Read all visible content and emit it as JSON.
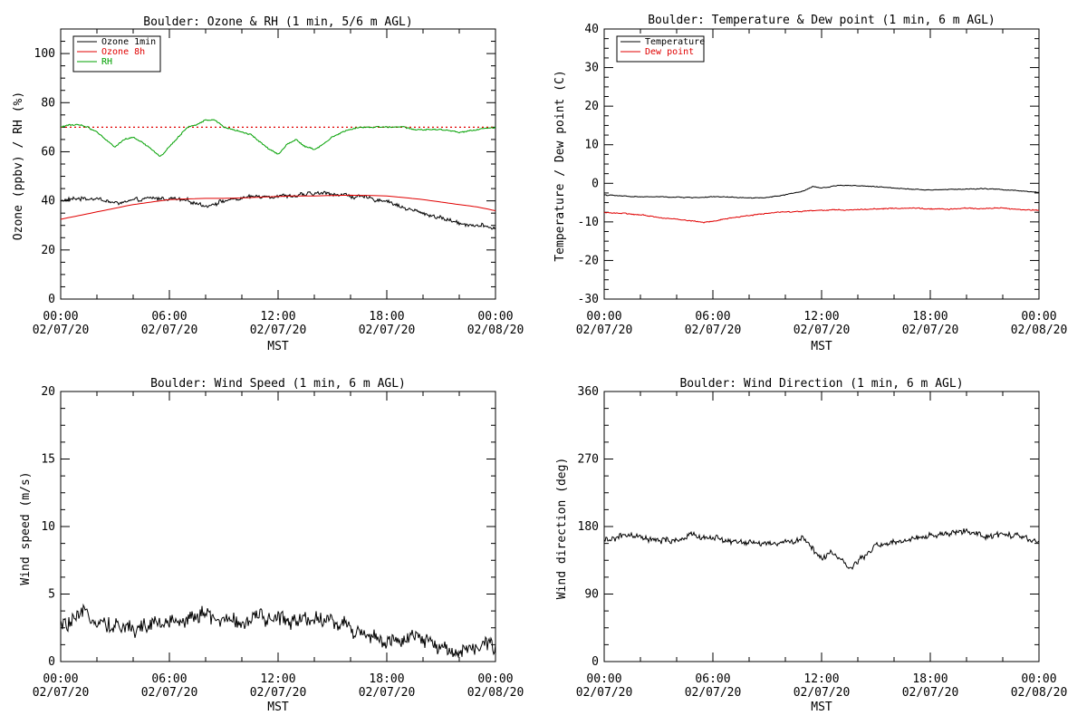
{
  "colors": {
    "black": "#000000",
    "red": "#e00000",
    "green": "#00a000"
  },
  "chart_data": [
    {
      "id": "ozone",
      "type": "line",
      "title": "Boulder: Ozone & RH (1 min, 5/6 m AGL)",
      "ylabel": "Ozone (ppbv) / RH (%)",
      "xlabel": "MST",
      "xlim": [
        0,
        24
      ],
      "ylim": [
        0,
        110
      ],
      "x_ticks": [
        {
          "hour": 0,
          "time": "00:00",
          "date": "02/07/20"
        },
        {
          "hour": 6,
          "time": "06:00",
          "date": "02/07/20"
        },
        {
          "hour": 12,
          "time": "12:00",
          "date": "02/07/20"
        },
        {
          "hour": 18,
          "time": "18:00",
          "date": "02/07/20"
        },
        {
          "hour": 24,
          "time": "00:00",
          "date": "02/08/20"
        }
      ],
      "y_ticks": [
        0,
        20,
        40,
        60,
        80,
        100
      ],
      "legend": "top-left",
      "reference_line": {
        "y": 70,
        "color": "#e00000",
        "style": "dotted"
      },
      "series": [
        {
          "name": "Ozone 1min",
          "color": "#000000",
          "noise": 1.2,
          "x": [
            0,
            1,
            2,
            3,
            4,
            5,
            6,
            7,
            8,
            9,
            10,
            11,
            12,
            13,
            14,
            15,
            16,
            17,
            18,
            19,
            20,
            21,
            22,
            23,
            24
          ],
          "y": [
            40,
            41,
            41,
            39,
            40,
            41,
            41,
            40,
            38,
            40,
            41,
            42,
            42,
            42,
            43,
            43,
            42,
            41,
            40,
            37,
            35,
            33,
            31,
            30,
            29
          ]
        },
        {
          "name": "Ozone 8h",
          "color": "#e00000",
          "noise": 0,
          "x": [
            0,
            1,
            2,
            3,
            4,
            5,
            6,
            7,
            8,
            9,
            10,
            11,
            12,
            13,
            14,
            15,
            16,
            17,
            18,
            19,
            20,
            21,
            22,
            23,
            24
          ],
          "y": [
            32.5,
            34,
            35.5,
            37,
            38.5,
            39.5,
            40.5,
            40.8,
            41,
            41,
            41.2,
            41.5,
            41.8,
            42,
            42,
            42.2,
            42.3,
            42.2,
            42,
            41.3,
            40.5,
            39.5,
            38.5,
            37.5,
            36
          ]
        },
        {
          "name": "RH",
          "color": "#00a000",
          "noise": 0.4,
          "x": [
            0,
            0.5,
            1,
            1.5,
            2,
            2.5,
            3,
            3.5,
            4,
            4.5,
            5,
            5.5,
            6,
            6.5,
            7,
            7.5,
            8,
            8.5,
            9,
            9.5,
            10,
            10.5,
            11,
            11.5,
            12,
            12.5,
            13,
            13.5,
            14,
            14.5,
            15,
            15.5,
            16,
            16.5,
            17,
            17.5,
            18,
            18.5,
            19,
            19.5,
            20,
            21,
            22,
            23,
            24
          ],
          "y": [
            70,
            71,
            71,
            70,
            68,
            65,
            62,
            65,
            66,
            64,
            61,
            58,
            62,
            66,
            70,
            71,
            73,
            73,
            70,
            69,
            68,
            67,
            64,
            61,
            59,
            63,
            65,
            62,
            61,
            63,
            66,
            68,
            69,
            70,
            70,
            70,
            70,
            70,
            70,
            69,
            69,
            69,
            68,
            69,
            70
          ]
        }
      ]
    },
    {
      "id": "temp",
      "type": "line",
      "title": "Boulder: Temperature & Dew point (1 min, 6 m AGL)",
      "ylabel": "Temperature / Dew point (C)",
      "xlabel": "MST",
      "xlim": [
        0,
        24
      ],
      "ylim": [
        -30,
        40
      ],
      "x_ticks": [
        {
          "hour": 0,
          "time": "00:00",
          "date": "02/07/20"
        },
        {
          "hour": 6,
          "time": "06:00",
          "date": "02/07/20"
        },
        {
          "hour": 12,
          "time": "12:00",
          "date": "02/07/20"
        },
        {
          "hour": 18,
          "time": "18:00",
          "date": "02/07/20"
        },
        {
          "hour": 24,
          "time": "00:00",
          "date": "02/08/20"
        }
      ],
      "y_ticks": [
        -30,
        -20,
        -10,
        0,
        10,
        20,
        30,
        40
      ],
      "legend": "top-left",
      "series": [
        {
          "name": "Temperature",
          "color": "#000000",
          "noise": 0.15,
          "x": [
            0,
            1,
            2,
            3,
            4,
            5,
            6,
            7,
            8,
            9,
            10,
            11,
            11.5,
            12,
            13,
            14,
            15,
            16,
            17,
            18,
            19,
            20,
            21,
            22,
            23,
            24
          ],
          "y": [
            -3,
            -3.3,
            -3.5,
            -3.5,
            -3.6,
            -3.7,
            -3.5,
            -3.6,
            -3.8,
            -3.7,
            -3,
            -2,
            -0.8,
            -1.2,
            -0.5,
            -0.6,
            -0.9,
            -1.2,
            -1.5,
            -1.7,
            -1.6,
            -1.5,
            -1.4,
            -1.6,
            -2,
            -2.4
          ]
        },
        {
          "name": "Dew point",
          "color": "#e00000",
          "noise": 0.2,
          "x": [
            0,
            1,
            2,
            3,
            4,
            5,
            5.5,
            6,
            7,
            8,
            9,
            10,
            11,
            12,
            13,
            14,
            15,
            16,
            17,
            18,
            19,
            20,
            21,
            22,
            23,
            24
          ],
          "y": [
            -7.5,
            -7.8,
            -8.2,
            -8.8,
            -9.3,
            -9.8,
            -10.2,
            -9.8,
            -9,
            -8.3,
            -7.8,
            -7.4,
            -7.2,
            -7,
            -6.9,
            -6.8,
            -6.6,
            -6.5,
            -6.5,
            -6.6,
            -6.7,
            -6.5,
            -6.5,
            -6.4,
            -6.8,
            -7
          ]
        }
      ]
    },
    {
      "id": "wspd",
      "type": "line",
      "title": "Boulder: Wind Speed (1 min, 6 m AGL)",
      "ylabel": "Wind speed (m/s)",
      "xlabel": "MST",
      "xlim": [
        0,
        24
      ],
      "ylim": [
        0,
        20
      ],
      "x_ticks": [
        {
          "hour": 0,
          "time": "00:00",
          "date": "02/07/20"
        },
        {
          "hour": 6,
          "time": "06:00",
          "date": "02/07/20"
        },
        {
          "hour": 12,
          "time": "12:00",
          "date": "02/07/20"
        },
        {
          "hour": 18,
          "time": "18:00",
          "date": "02/07/20"
        },
        {
          "hour": 24,
          "time": "00:00",
          "date": "02/08/20"
        }
      ],
      "y_ticks": [
        0,
        5,
        10,
        15,
        20
      ],
      "series": [
        {
          "name": "",
          "color": "#000000",
          "noise": 0.9,
          "x": [
            0,
            1,
            1.5,
            2,
            3,
            4,
            5,
            6,
            7,
            7.5,
            8,
            9,
            10,
            11,
            12,
            13,
            14,
            15,
            16,
            17,
            18,
            19,
            19.5,
            20,
            21,
            22,
            23,
            24
          ],
          "y": [
            2.6,
            3,
            3.7,
            3.2,
            2.6,
            2.5,
            2.7,
            2.9,
            3.2,
            3.6,
            3.4,
            3,
            3,
            3.1,
            3.2,
            3.2,
            3.3,
            3,
            2.5,
            2.0,
            1.5,
            1.3,
            1.8,
            1.6,
            1.0,
            0.9,
            1.1,
            1.1
          ]
        }
      ]
    },
    {
      "id": "wdir",
      "type": "line",
      "title": "Boulder: Wind Direction (1 min, 6 m AGL)",
      "ylabel": "Wind direction (deg)",
      "xlabel": "MST",
      "xlim": [
        0,
        24
      ],
      "ylim": [
        0,
        360
      ],
      "x_ticks": [
        {
          "hour": 0,
          "time": "00:00",
          "date": "02/07/20"
        },
        {
          "hour": 6,
          "time": "06:00",
          "date": "02/07/20"
        },
        {
          "hour": 12,
          "time": "12:00",
          "date": "02/07/20"
        },
        {
          "hour": 18,
          "time": "18:00",
          "date": "02/07/20"
        },
        {
          "hour": 24,
          "time": "00:00",
          "date": "02/08/20"
        }
      ],
      "y_ticks": [
        0,
        90,
        180,
        270,
        360
      ],
      "series": [
        {
          "name": "",
          "color": "#000000",
          "noise": 6,
          "x": [
            0,
            1,
            2,
            3,
            4,
            5,
            6,
            7,
            8,
            9,
            10,
            11,
            11.5,
            12,
            12.5,
            13,
            13.5,
            14,
            14.5,
            15,
            16,
            17,
            18,
            19,
            20,
            21,
            22,
            23,
            24
          ],
          "y": [
            160,
            168,
            165,
            160,
            162,
            168,
            165,
            160,
            158,
            157,
            158,
            165,
            150,
            138,
            145,
            140,
            125,
            130,
            145,
            155,
            158,
            162,
            168,
            170,
            175,
            165,
            170,
            165,
            160
          ]
        }
      ]
    }
  ]
}
